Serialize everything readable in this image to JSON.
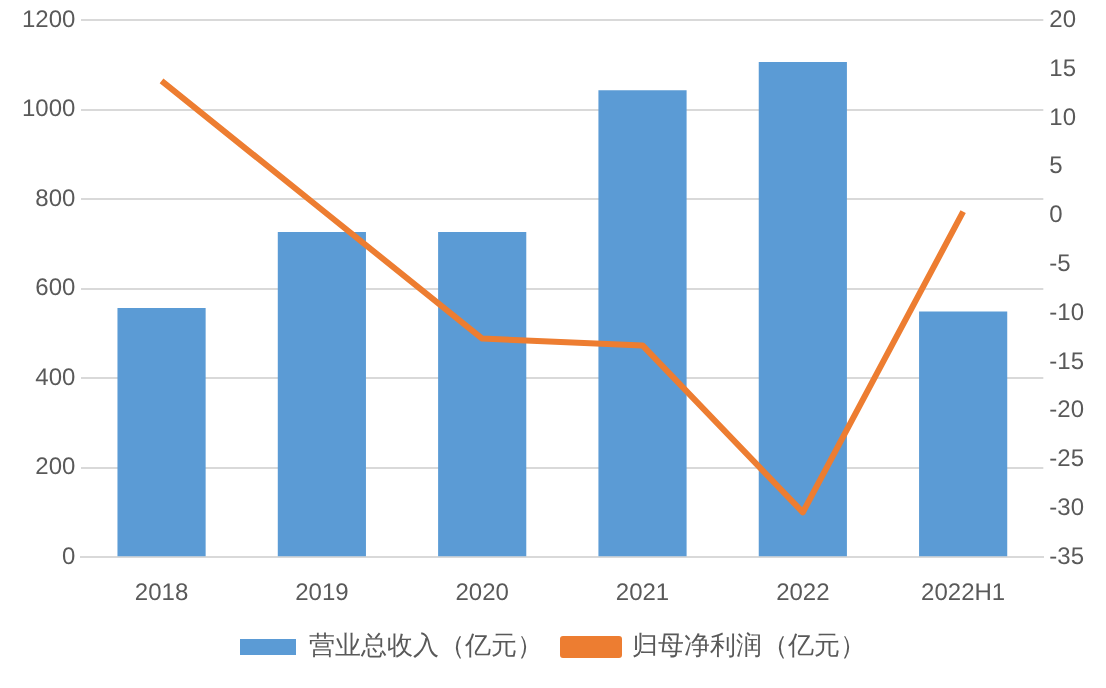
{
  "chart_data": {
    "type": "bar",
    "categories": [
      "2018",
      "2019",
      "2020",
      "2021",
      "2022",
      "2022H1"
    ],
    "series": [
      {
        "name": "营业总收入（亿元）",
        "color": "#5b9bd5",
        "values": [
          557,
          727,
          727,
          1044,
          1107,
          549
        ]
      },
      {
        "name": "归母净利润（亿元）",
        "type": "line",
        "axis": "y2",
        "color": "#ed7d31",
        "values": [
          13.8,
          0.6,
          -12.6,
          -13.3,
          -30.4,
          0.4
        ]
      }
    ],
    "ylim": [
      0,
      1200
    ],
    "yticks": [
      0,
      200,
      400,
      600,
      800,
      1000,
      1200
    ],
    "y2lim": [
      -35,
      20
    ],
    "y2ticks": [
      -35,
      -30,
      -25,
      -20,
      -15,
      -10,
      -5,
      0,
      5,
      10,
      15,
      20
    ],
    "grid": "y",
    "legend": "bottom",
    "marker": "none"
  }
}
